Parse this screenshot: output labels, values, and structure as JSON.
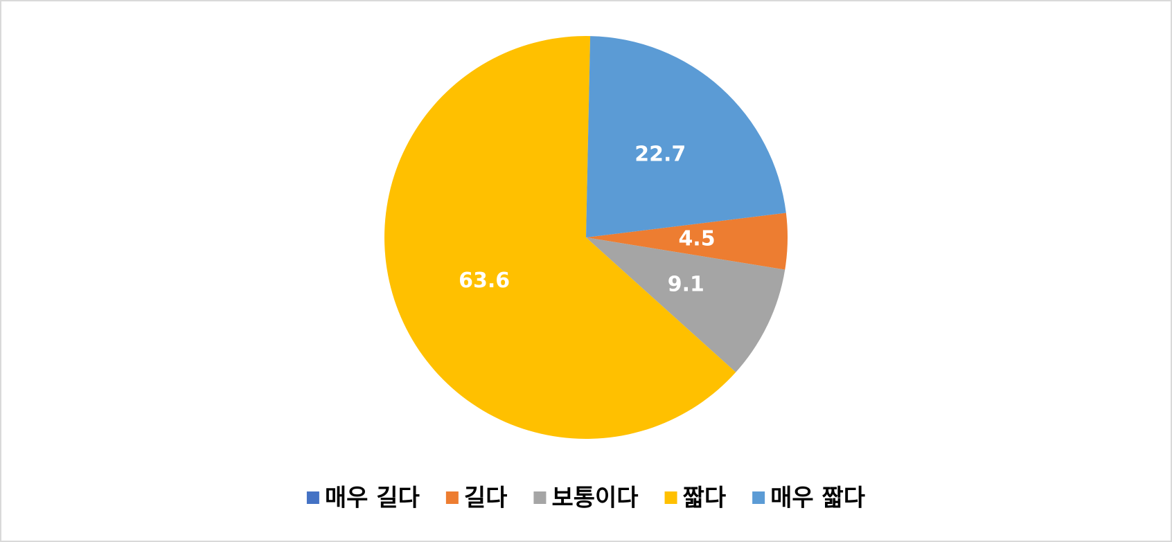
{
  "chart_data": {
    "type": "pie",
    "categories": [
      "매우 길다",
      "길다",
      "보통이다",
      "짧다",
      "매우 짧다"
    ],
    "values": [
      0,
      4.5,
      9.1,
      63.6,
      22.7
    ],
    "colors": [
      "#4472c4",
      "#ed7d31",
      "#a5a5a5",
      "#ffc000",
      "#5b9bd5"
    ],
    "legend": "bottom"
  }
}
